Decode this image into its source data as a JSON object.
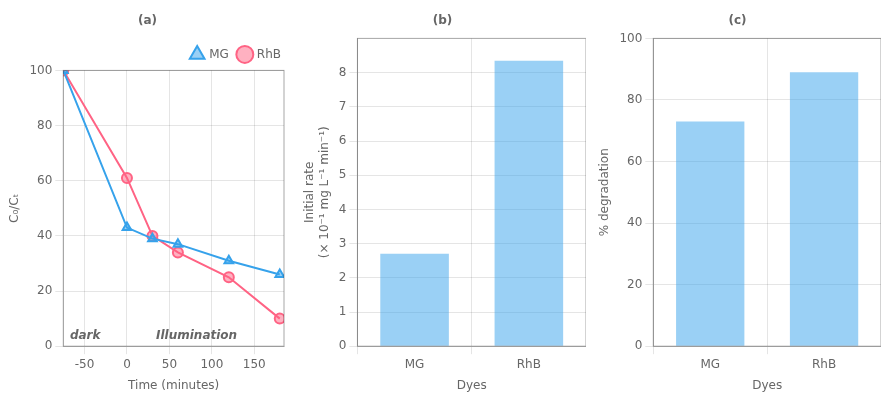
{
  "chart_data": [
    {
      "type": "line",
      "title": "(a)",
      "x": [
        -75,
        0,
        30,
        60,
        120,
        180
      ],
      "series": [
        {
          "name": "MG",
          "values": [
            100,
            43,
            39,
            37,
            31,
            26
          ],
          "marker": "triangle"
        },
        {
          "name": "RhB",
          "values": [
            100,
            61,
            40,
            34,
            25,
            10
          ],
          "marker": "circle"
        }
      ],
      "xlabel": "Time (minutes)",
      "ylabel": "C₀/Cₜ",
      "xlim": [
        -75,
        185
      ],
      "xticks": [
        -50,
        0,
        50,
        100,
        150
      ],
      "ylim": [
        0,
        100
      ],
      "yticks": [
        0,
        20,
        40,
        60,
        80,
        100
      ],
      "annotations": [
        "dark",
        "Illumination"
      ],
      "legend": "top-right"
    },
    {
      "type": "bar",
      "title": "(b)",
      "categories": [
        "MG",
        "RhB"
      ],
      "values": [
        2.7,
        8.35
      ],
      "xlabel": "Dyes",
      "ylabel": [
        "Initial rate",
        "(× 10⁻¹ mg L⁻¹ min⁻¹)"
      ],
      "ylim": [
        0,
        9
      ],
      "yticks": [
        0,
        1,
        2,
        3,
        4,
        5,
        6,
        7,
        8
      ]
    },
    {
      "type": "bar",
      "title": "(c)",
      "categories": [
        "MG",
        "RhB"
      ],
      "values": [
        73,
        89
      ],
      "xlabel": "Dyes",
      "ylabel": "% degradation",
      "ylim": [
        0,
        100
      ],
      "yticks": [
        0,
        20,
        40,
        60,
        80,
        100
      ]
    }
  ]
}
